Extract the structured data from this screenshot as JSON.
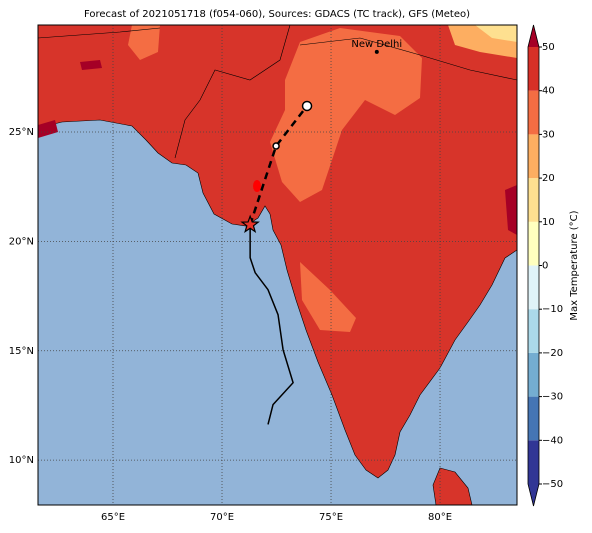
{
  "map": {
    "title": "Forecast of 2021051718 (f054-060), Sources: GDACS (TC track), GFS (Meteo)",
    "xlim": [
      61.56,
      83.53
    ],
    "ylim": [
      7.95,
      29.89
    ],
    "xticks": [
      {
        "value": 65,
        "label": "65°E"
      },
      {
        "value": 70,
        "label": "70°E"
      },
      {
        "value": 75,
        "label": "75°E"
      },
      {
        "value": 80,
        "label": "80°E"
      }
    ],
    "yticks": [
      {
        "value": 10,
        "label": "10°N"
      },
      {
        "value": 15,
        "label": "15°N"
      },
      {
        "value": 20,
        "label": "20°N"
      },
      {
        "value": 25,
        "label": "25°N"
      }
    ],
    "grid": true,
    "city": {
      "name": "New Delhi",
      "lon": 77.1,
      "lat": 28.66
    },
    "track_observed": {
      "lon": [
        72.11,
        72.34,
        73.26,
        72.8,
        72.57,
        72.11,
        71.52,
        71.29,
        71.29,
        71.29
      ],
      "lat": [
        11.63,
        12.54,
        13.54,
        15.05,
        16.65,
        17.79,
        18.57,
        19.25,
        20.62,
        20.76
      ]
    },
    "track_forecast": {
      "lon": [
        71.29,
        72.48,
        73.9
      ],
      "lat": [
        20.76,
        24.36,
        26.19
      ]
    },
    "colorbar": {
      "label": "Max Temperature (°C)",
      "lim": [
        -50,
        50
      ],
      "colors": [
        "#313695",
        "#4575b4",
        "#74add1",
        "#abd9e9",
        "#e0f3f8",
        "#ffffbf",
        "#fee090",
        "#fdae61",
        "#f46d43",
        "#d73027",
        "#a50026"
      ],
      "ticks": [
        {
          "value": -50,
          "label": "−50"
        },
        {
          "value": -40,
          "label": "−40"
        },
        {
          "value": -30,
          "label": "−30"
        },
        {
          "value": -20,
          "label": "−20"
        },
        {
          "value": -10,
          "label": "−10"
        },
        0,
        10,
        20,
        30,
        40,
        50
      ]
    }
  }
}
